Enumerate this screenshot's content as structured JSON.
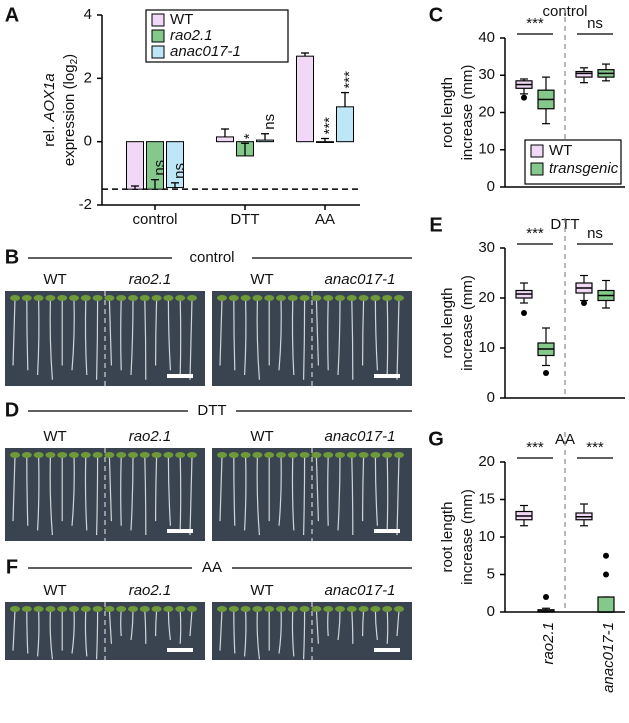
{
  "chart_data": [
    {
      "type": "bar",
      "panel": "A",
      "ylabel": [
        "rel. ",
        "AOX1a",
        "expression (log",
        "2",
        ")"
      ],
      "categories": [
        "control",
        "DTT",
        "AA"
      ],
      "ylim": [
        -2,
        4
      ],
      "yticks": [
        -2,
        0,
        2,
        4
      ],
      "reference_line": -1.5,
      "series": [
        {
          "name": "WT",
          "color": "#f1d8f6",
          "values": [
            -1.5,
            0.15,
            2.7
          ],
          "errors": [
            0.1,
            0.25,
            0.1
          ],
          "annotations": [
            null,
            null,
            null
          ]
        },
        {
          "name": "rao2.1",
          "color": "#84c98b",
          "values": [
            -1.5,
            -0.45,
            0.0
          ],
          "errors": [
            0.3,
            0.4,
            0.1
          ],
          "annotations": [
            "ns",
            "*",
            "***"
          ]
        },
        {
          "name": "anac017-1",
          "color": "#bde6f6",
          "values": [
            -1.45,
            0.05,
            1.1
          ],
          "errors": [
            0.15,
            0.2,
            0.45
          ],
          "annotations": [
            "ns",
            "ns",
            "***"
          ]
        }
      ]
    },
    {
      "type": "box",
      "panel": "C",
      "title": "control",
      "ylabel": [
        "root length",
        "increase (mm)"
      ],
      "ylim": [
        0,
        40
      ],
      "yticks": [
        0,
        10,
        20,
        30,
        40
      ],
      "categories": [
        null,
        null
      ],
      "annotations": [
        "***",
        "ns"
      ],
      "legend": "lower right",
      "series": [
        {
          "name": "WT",
          "color": "#f1d8f6",
          "boxes": [
            {
              "min": 25,
              "q1": 26.5,
              "median": 27.5,
              "q3": 28.5,
              "max": 29,
              "outliers": [
                24
              ]
            },
            {
              "min": 28,
              "q1": 29.5,
              "median": 30.5,
              "q3": 31,
              "max": 32,
              "outliers": []
            }
          ]
        },
        {
          "name": "transgenic",
          "color": "#84c98b",
          "boxes": [
            {
              "min": 17,
              "q1": 21,
              "median": 23.5,
              "q3": 26,
              "max": 29.5,
              "outliers": []
            },
            {
              "min": 28.5,
              "q1": 29.5,
              "median": 30.5,
              "q3": 31.5,
              "max": 33,
              "outliers": []
            }
          ]
        }
      ]
    },
    {
      "type": "box",
      "panel": "E",
      "title": "DTT",
      "ylabel": [
        "root length",
        "increase (mm)"
      ],
      "ylim": [
        0,
        30
      ],
      "yticks": [
        0,
        10,
        20,
        30
      ],
      "categories": [
        null,
        null
      ],
      "annotations": [
        "***",
        "ns"
      ],
      "series": [
        {
          "color": "#f1d8f6",
          "boxes": [
            {
              "min": 19,
              "q1": 20,
              "median": 20.8,
              "q3": 21.5,
              "max": 23,
              "outliers": [
                17
              ]
            },
            {
              "min": 19.5,
              "q1": 21,
              "median": 22,
              "q3": 23,
              "max": 24.5,
              "outliers": [
                19
              ]
            }
          ]
        },
        {
          "color": "#84c98b",
          "boxes": [
            {
              "min": 6.5,
              "q1": 8.5,
              "median": 9.8,
              "q3": 11,
              "max": 14,
              "outliers": [
                5
              ]
            },
            {
              "min": 18,
              "q1": 19.5,
              "median": 20.5,
              "q3": 21.5,
              "max": 23.5,
              "outliers": []
            }
          ]
        }
      ]
    },
    {
      "type": "box",
      "panel": "G",
      "title": "AA",
      "ylabel": [
        "root length",
        "increase (mm)"
      ],
      "ylim": [
        0,
        20
      ],
      "yticks": [
        0,
        5,
        10,
        15,
        20
      ],
      "categories": [
        "rao2.1",
        "anac017-1"
      ],
      "annotations": [
        "***",
        "***"
      ],
      "series": [
        {
          "color": "#f1d8f6",
          "boxes": [
            {
              "min": 11.5,
              "q1": 12.3,
              "median": 12.8,
              "q3": 13.4,
              "max": 14.2,
              "outliers": []
            },
            {
              "min": 11.5,
              "q1": 12.3,
              "median": 12.7,
              "q3": 13.2,
              "max": 14.4,
              "outliers": []
            }
          ]
        },
        {
          "color": "#84c98b",
          "boxes": [
            {
              "min": 0,
              "q1": 0,
              "median": 0.1,
              "q3": 0.3,
              "max": 0.5,
              "outliers": [
                2
              ]
            },
            {
              "min": 0,
              "q1": 0,
              "median": 0,
              "q3": 2,
              "max": 2,
              "outliers": [
                7.5,
                5
              ]
            }
          ]
        }
      ]
    }
  ],
  "photos": [
    {
      "panel": "B",
      "title": "control",
      "labels": [
        "WT",
        "rao2.1",
        "WT",
        "anac017-1"
      ]
    },
    {
      "panel": "D",
      "title": "DTT",
      "labels": [
        "WT",
        "rao2.1",
        "WT",
        "anac017-1"
      ]
    },
    {
      "panel": "F",
      "title": "AA",
      "labels": [
        "WT",
        "rao2.1",
        "WT",
        "anac017-1"
      ]
    }
  ]
}
